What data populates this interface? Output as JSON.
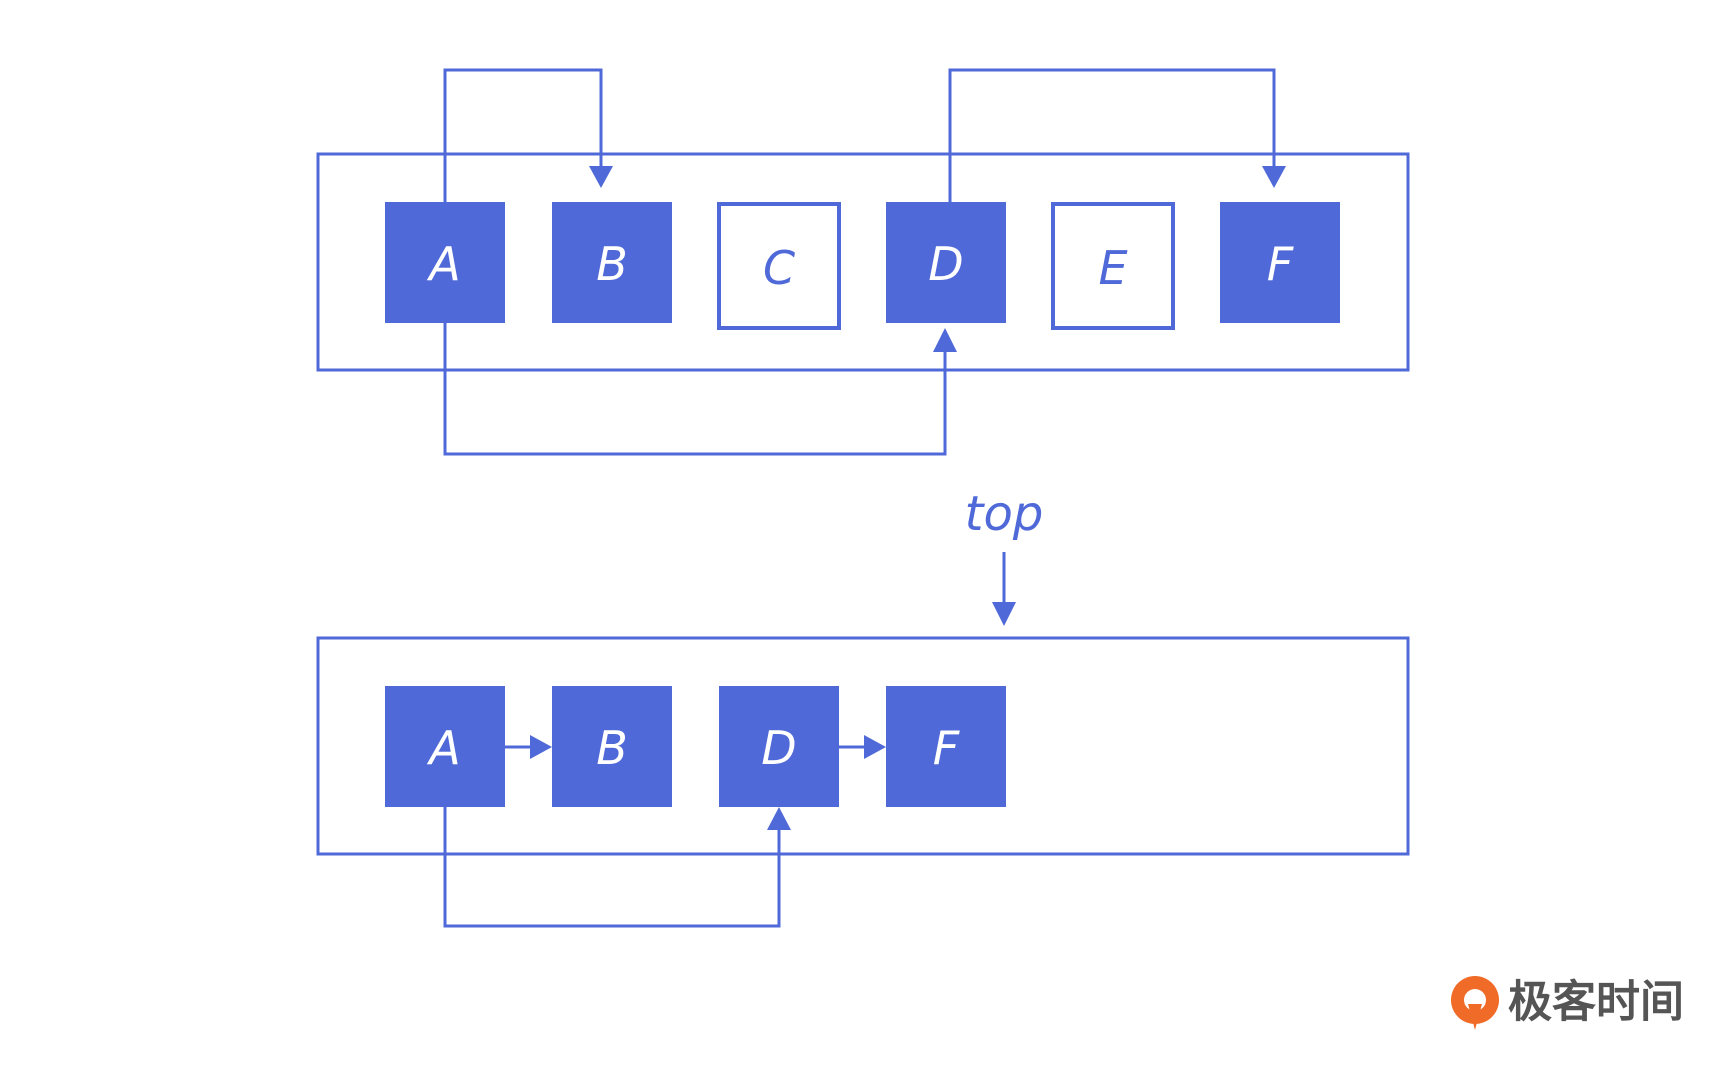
{
  "colors": {
    "primary": "#5069d8",
    "filled_text": "#ffffff",
    "outline_text": "#5069d8",
    "brand_text": "#555555",
    "brand_accent": "#f06a28"
  },
  "top_diagram": {
    "nodes": [
      {
        "label": "A",
        "style": "filled"
      },
      {
        "label": "B",
        "style": "filled"
      },
      {
        "label": "C",
        "style": "outline"
      },
      {
        "label": "D",
        "style": "filled"
      },
      {
        "label": "E",
        "style": "outline"
      },
      {
        "label": "F",
        "style": "filled"
      }
    ],
    "edges": [
      {
        "from": "A",
        "to": "B",
        "route": "over"
      },
      {
        "from": "D",
        "to": "F",
        "route": "over"
      },
      {
        "from": "A",
        "to": "D",
        "route": "under"
      }
    ]
  },
  "bottom_diagram": {
    "pointer_label": "top",
    "nodes": [
      {
        "label": "A",
        "style": "filled"
      },
      {
        "label": "B",
        "style": "filled"
      },
      {
        "label": "D",
        "style": "filled"
      },
      {
        "label": "F",
        "style": "filled"
      }
    ],
    "edges": [
      {
        "from": "A",
        "to": "B",
        "route": "direct"
      },
      {
        "from": "D",
        "to": "F",
        "route": "direct"
      },
      {
        "from": "A",
        "to": "D",
        "route": "under"
      }
    ]
  },
  "brand": {
    "logo_icon": "geektime-logo-icon",
    "name": "极客时间"
  }
}
